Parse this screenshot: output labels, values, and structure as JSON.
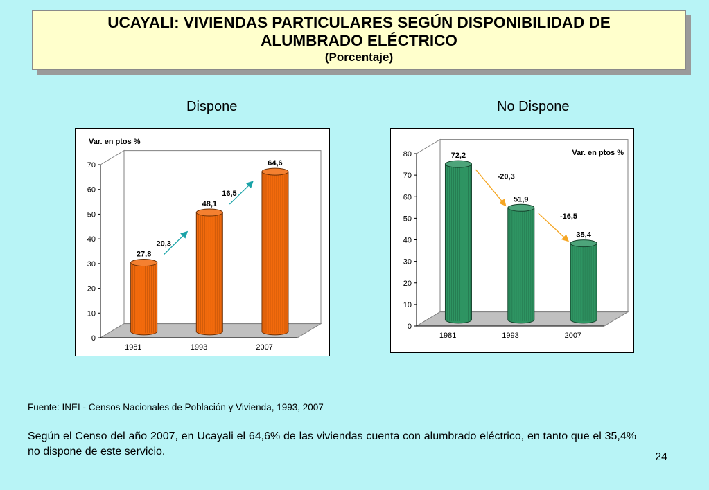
{
  "title": {
    "line1": "UCAYALI: VIVIENDAS PARTICULARES SEGÚN DISPONIBILIDAD DE",
    "line2": "ALUMBRADO ELÉCTRICO",
    "subtitle": "(Porcentaje)"
  },
  "chart_data": [
    {
      "type": "bar",
      "title": "Dispone",
      "categories": [
        "1981",
        "1993",
        "2007"
      ],
      "values": [
        27.8,
        48.1,
        64.6
      ],
      "value_labels": [
        "27,8",
        "48,1",
        "64,6"
      ],
      "ylim": [
        0,
        70
      ],
      "yticks": [
        0,
        10,
        20,
        30,
        40,
        50,
        60,
        70
      ],
      "variation_title": "Var. en ptos %",
      "variations": [
        "20,3",
        "16,5"
      ],
      "bar_color": "#f26a0c",
      "arrow_color": "#1aa3a8"
    },
    {
      "type": "bar",
      "title": "No Dispone",
      "categories": [
        "1981",
        "1993",
        "2007"
      ],
      "values": [
        72.2,
        51.9,
        35.4
      ],
      "value_labels": [
        "72,2",
        "51,9",
        "35,4"
      ],
      "ylim": [
        0,
        80
      ],
      "yticks": [
        0,
        10,
        20,
        30,
        40,
        50,
        60,
        70,
        80
      ],
      "variation_title": "Var. en ptos %",
      "variations": [
        "-20,3",
        "-16,5"
      ],
      "bar_color": "#2e9462",
      "arrow_color": "#f5a623"
    }
  ],
  "footer": {
    "source": "Fuente: INEI -  Censos Nacionales de Población y Vivienda, 1993, 2007",
    "note": "Según el Censo del año 2007, en Ucayali el 64,6% de las viviendas cuenta con alumbrado eléctrico, en tanto que el 35,4% no dispone de este servicio.",
    "page_number": "24"
  }
}
